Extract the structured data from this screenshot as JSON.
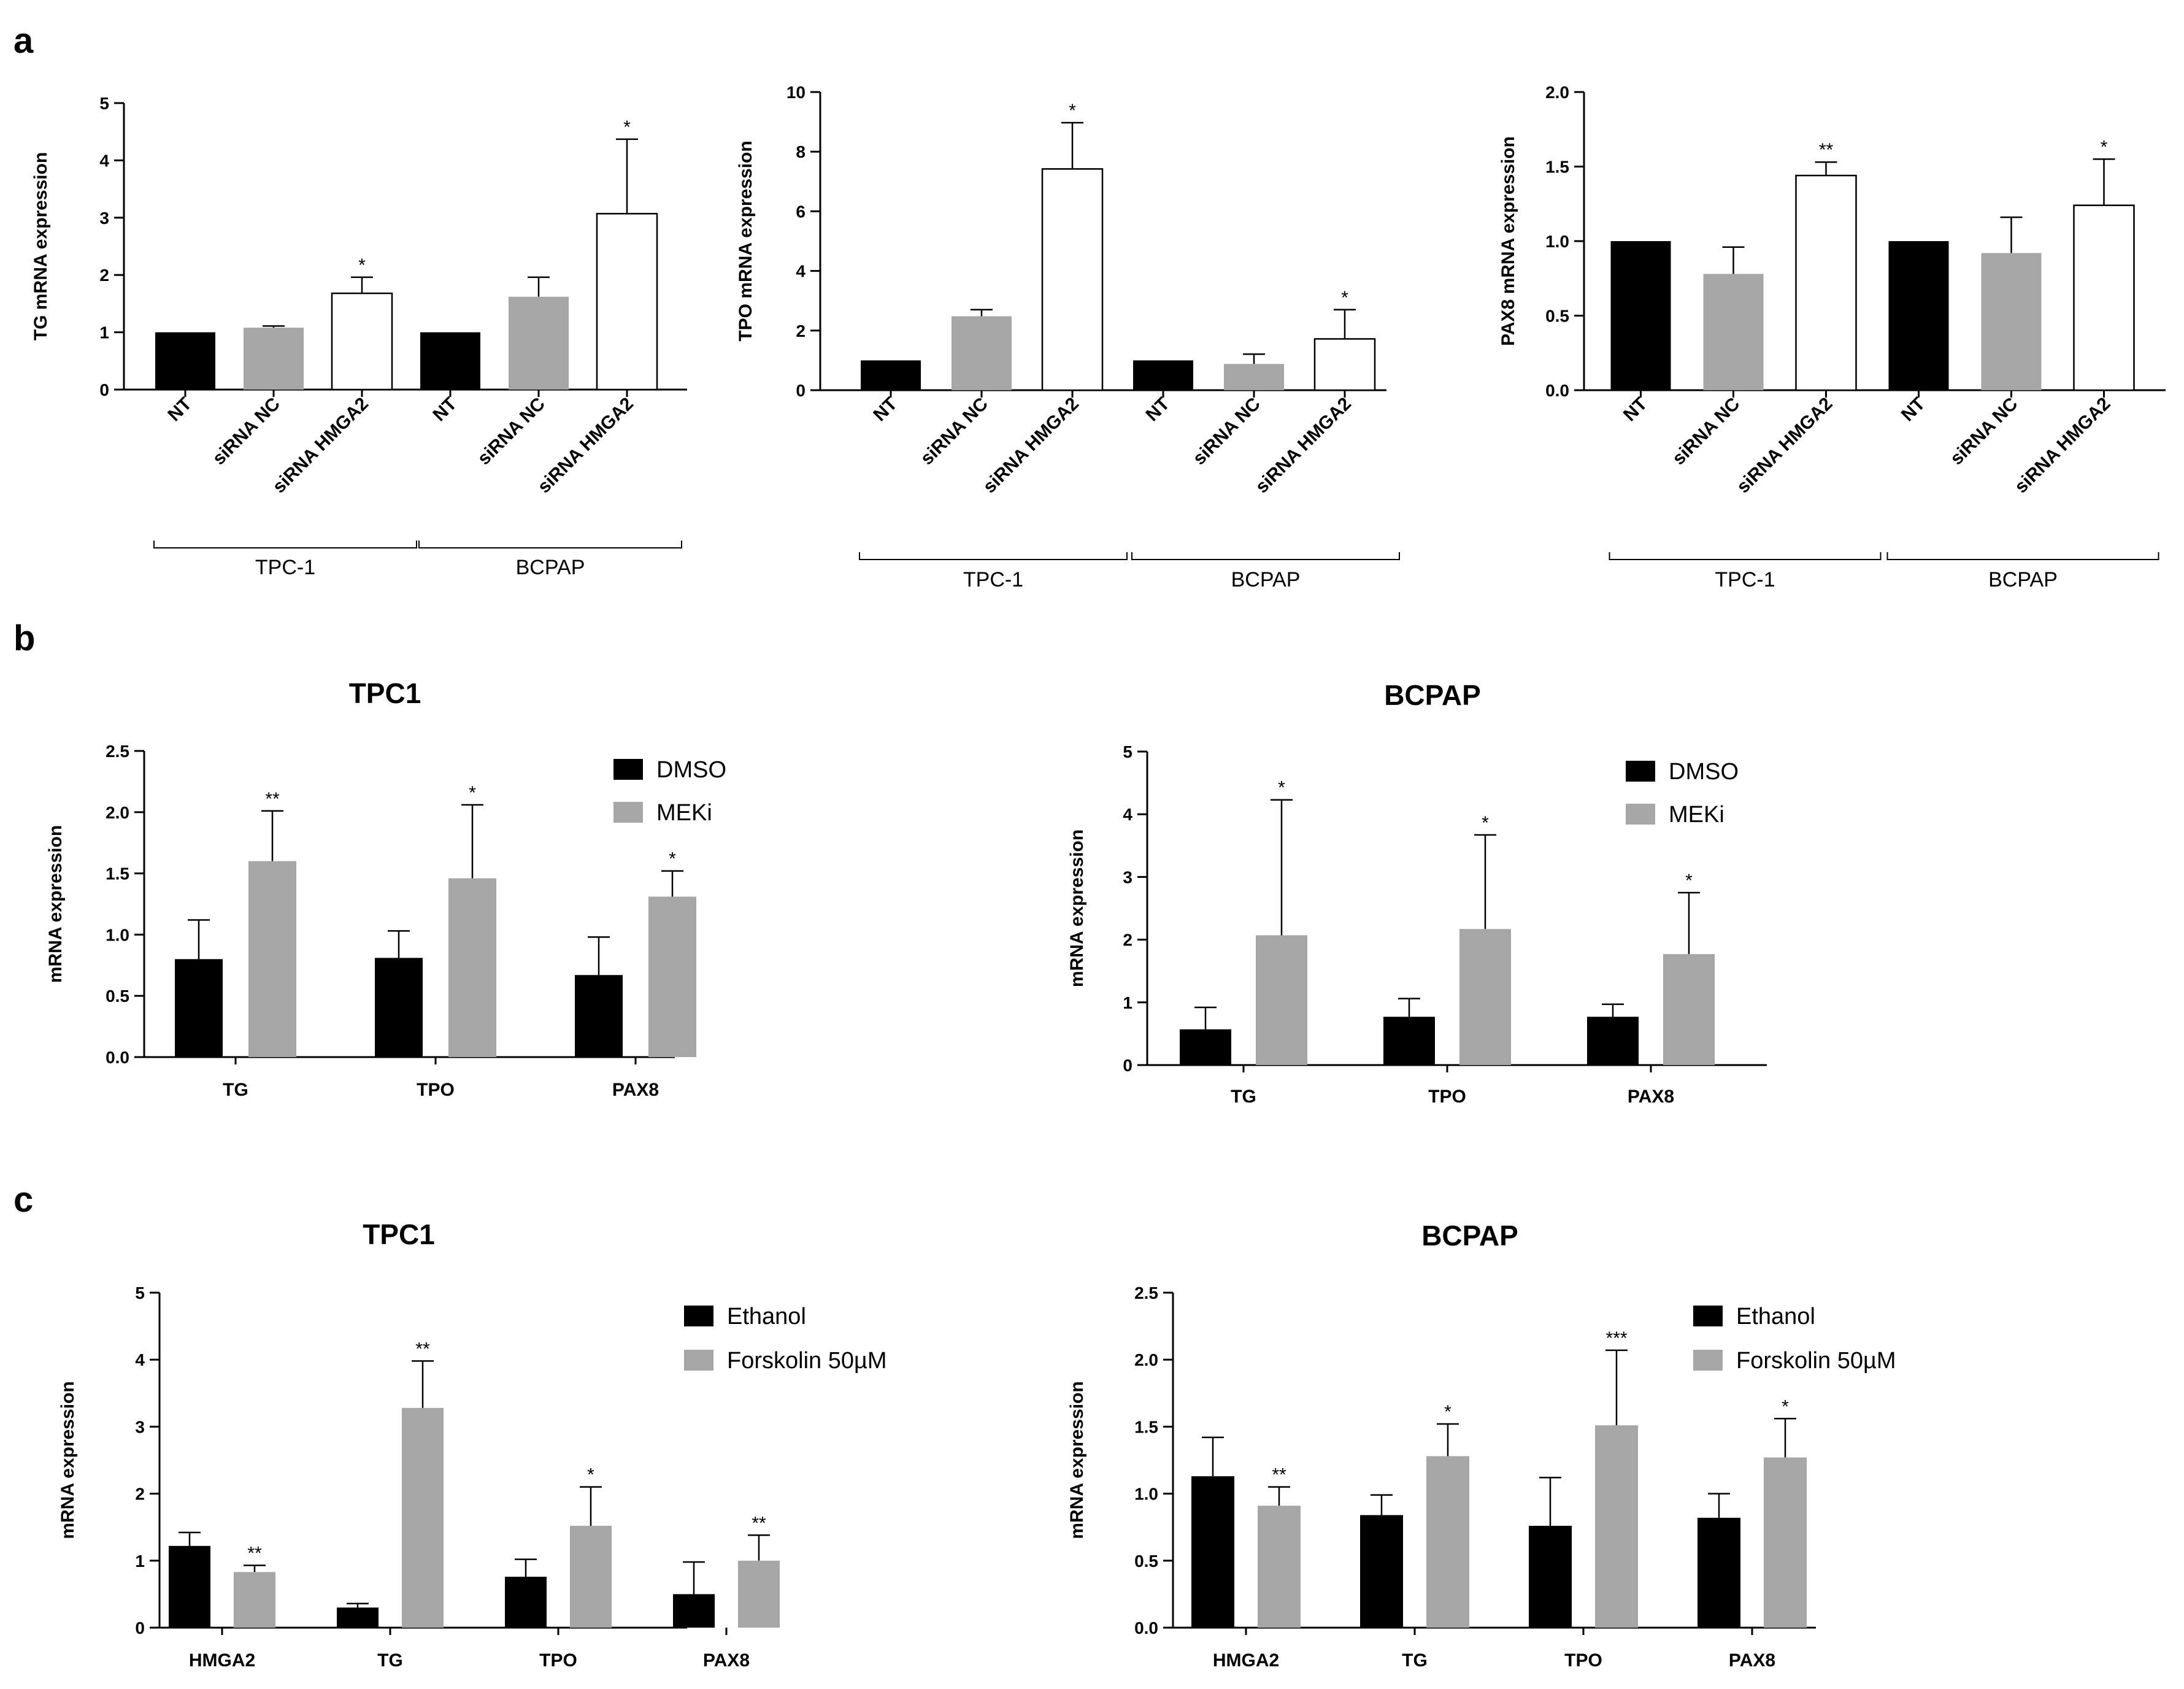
{
  "panel_labels": [
    "a",
    "b",
    "c"
  ],
  "colors": {
    "black": "#000000",
    "grey": "#a6a6a6",
    "white": "#ffffff"
  },
  "chart_data": [
    {
      "id": "a1",
      "type": "bar",
      "panel": "a",
      "ylabel": "TG mRNA expression",
      "ylim": [
        0,
        5
      ],
      "yticks": [
        0,
        1,
        2,
        3,
        4,
        5
      ],
      "decimals": 0,
      "categories": [
        "NT",
        "siRNA NC",
        "siRNA HMGA2",
        "NT",
        "siRNA NC",
        "siRNA HMGA2"
      ],
      "groups": [
        {
          "label": "TPC-1",
          "from": 0,
          "to": 2
        },
        {
          "label": "BCPAP",
          "from": 3,
          "to": 5
        }
      ],
      "values": [
        1.0,
        1.08,
        1.68,
        1.0,
        1.62,
        3.07
      ],
      "errors": [
        0,
        0.03,
        0.28,
        0,
        0.34,
        1.3
      ],
      "fills": [
        "black",
        "grey",
        "white",
        "black",
        "grey",
        "white"
      ],
      "significance": [
        "",
        "",
        "*",
        "",
        "",
        "*"
      ]
    },
    {
      "id": "a2",
      "type": "bar",
      "panel": "a",
      "ylabel": "TPO mRNA expression",
      "ylim": [
        0,
        10
      ],
      "yticks": [
        0,
        2,
        4,
        6,
        8,
        10
      ],
      "decimals": 0,
      "categories": [
        "NT",
        "siRNA NC",
        "siRNA HMGA2",
        "NT",
        "siRNA NC",
        "siRNA HMGA2"
      ],
      "groups": [
        {
          "label": "TPC-1",
          "from": 0,
          "to": 2
        },
        {
          "label": "BCPAP",
          "from": 3,
          "to": 5
        }
      ],
      "values": [
        1.0,
        2.48,
        7.42,
        1.0,
        0.88,
        1.72
      ],
      "errors": [
        0,
        0.22,
        1.55,
        0,
        0.33,
        0.98
      ],
      "fills": [
        "black",
        "grey",
        "white",
        "black",
        "grey",
        "white"
      ],
      "significance": [
        "",
        "",
        "*",
        "",
        "",
        "*"
      ]
    },
    {
      "id": "a3",
      "type": "bar",
      "panel": "a",
      "ylabel": "PAX8 mRNA expression",
      "ylim": [
        0,
        2
      ],
      "yticks": [
        0,
        0.5,
        1.0,
        1.5,
        2.0
      ],
      "decimals": 1,
      "categories": [
        "NT",
        "siRNA NC",
        "siRNA HMGA2",
        "NT",
        "siRNA NC",
        "siRNA HMGA2"
      ],
      "groups": [
        {
          "label": "TPC-1",
          "from": 0,
          "to": 2
        },
        {
          "label": "BCPAP",
          "from": 3,
          "to": 5
        }
      ],
      "values": [
        1.0,
        0.78,
        1.44,
        1.0,
        0.92,
        1.24
      ],
      "errors": [
        0,
        0.18,
        0.09,
        0,
        0.24,
        0.31
      ],
      "fills": [
        "black",
        "grey",
        "white",
        "black",
        "grey",
        "white"
      ],
      "significance": [
        "",
        "",
        "**",
        "",
        "",
        "*"
      ]
    },
    {
      "id": "b1",
      "type": "bar",
      "panel": "b",
      "title": "TPC1",
      "ylabel": "mRNA expression",
      "ylim": [
        0,
        2.5
      ],
      "yticks": [
        0,
        0.5,
        1.0,
        1.5,
        2.0,
        2.5
      ],
      "decimals": 1,
      "categories": [
        "TG",
        "TPO",
        "PAX8"
      ],
      "legend": [
        "DMSO",
        "MEKi"
      ],
      "series": [
        {
          "name": "DMSO",
          "fill": "black",
          "values": [
            0.8,
            0.81,
            0.67
          ],
          "errors": [
            0.32,
            0.22,
            0.31
          ],
          "significance": [
            "",
            "",
            ""
          ]
        },
        {
          "name": "MEKi",
          "fill": "grey",
          "values": [
            1.6,
            1.46,
            1.31
          ],
          "errors": [
            0.41,
            0.6,
            0.21
          ],
          "significance": [
            "**",
            "*",
            "*"
          ]
        }
      ]
    },
    {
      "id": "b2",
      "type": "bar",
      "panel": "b",
      "title": "BCPAP",
      "ylabel": "mRNA expression",
      "ylim": [
        0,
        5
      ],
      "yticks": [
        0,
        1,
        2,
        3,
        4,
        5
      ],
      "decimals": 0,
      "categories": [
        "TG",
        "TPO",
        "PAX8"
      ],
      "legend": [
        "DMSO",
        "MEKi"
      ],
      "series": [
        {
          "name": "DMSO",
          "fill": "black",
          "values": [
            0.57,
            0.77,
            0.77
          ],
          "errors": [
            0.35,
            0.29,
            0.2
          ],
          "significance": [
            "",
            "",
            ""
          ]
        },
        {
          "name": "MEKi",
          "fill": "grey",
          "values": [
            2.07,
            2.17,
            1.77
          ],
          "errors": [
            2.16,
            1.5,
            0.98
          ],
          "significance": [
            "*",
            "*",
            "*"
          ]
        }
      ]
    },
    {
      "id": "c1",
      "type": "bar",
      "panel": "c",
      "title": "TPC1",
      "ylabel": "mRNA expression",
      "ylim": [
        0,
        5
      ],
      "yticks": [
        0,
        1,
        2,
        3,
        4,
        5
      ],
      "decimals": 0,
      "categories": [
        "HMGA2",
        "TG",
        "TPO",
        "PAX8"
      ],
      "legend": [
        "Ethanol",
        "Forskolin 50µM"
      ],
      "series": [
        {
          "name": "Ethanol",
          "fill": "black",
          "values": [
            1.22,
            0.3,
            0.76,
            0.5
          ],
          "errors": [
            0.2,
            0.06,
            0.26,
            0.48
          ],
          "significance": [
            "",
            "",
            "",
            ""
          ]
        },
        {
          "name": "Forskolin 50µM",
          "fill": "grey",
          "values": [
            0.83,
            3.28,
            1.52,
            1.0
          ],
          "errors": [
            0.1,
            0.7,
            0.58,
            0.38
          ],
          "significance": [
            "**",
            "**",
            "*",
            "**"
          ]
        }
      ]
    },
    {
      "id": "c2",
      "type": "bar",
      "panel": "c",
      "title": "BCPAP",
      "ylabel": "mRNA expression",
      "ylim": [
        0,
        2.5
      ],
      "yticks": [
        0,
        0.5,
        1.0,
        1.5,
        2.0,
        2.5
      ],
      "decimals": 1,
      "categories": [
        "HMGA2",
        "TG",
        "TPO",
        "PAX8"
      ],
      "legend": [
        "Ethanol",
        "Forskolin 50µM"
      ],
      "series": [
        {
          "name": "Ethanol",
          "fill": "black",
          "values": [
            1.13,
            0.84,
            0.76,
            0.82
          ],
          "errors": [
            0.29,
            0.15,
            0.36,
            0.18
          ],
          "significance": [
            "",
            "",
            "",
            ""
          ]
        },
        {
          "name": "Forskolin 50µM",
          "fill": "grey",
          "values": [
            0.91,
            1.28,
            1.51,
            1.27
          ],
          "errors": [
            0.14,
            0.24,
            0.56,
            0.29
          ],
          "significance": [
            "**",
            "*",
            "***",
            "*"
          ]
        }
      ]
    }
  ]
}
